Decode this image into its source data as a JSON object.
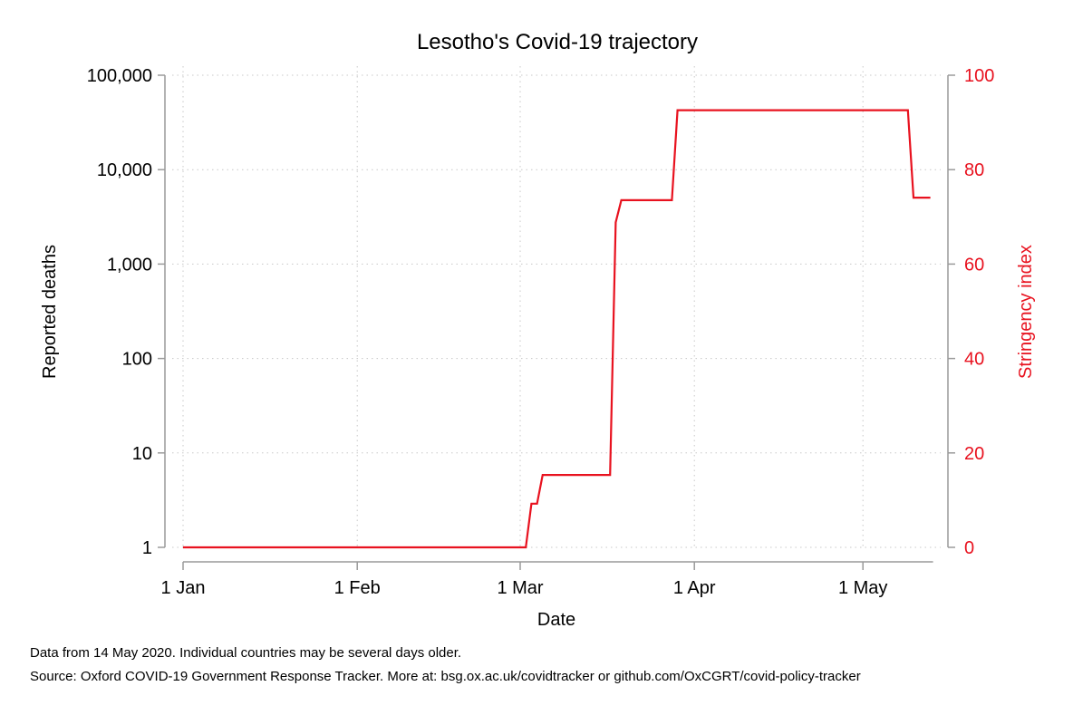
{
  "chart_data": {
    "type": "line",
    "title": "Lesotho's Covid-19 trajectory",
    "xlabel": "Date",
    "ylabel_left": "Reported deaths",
    "ylabel_right": "Stringency index",
    "x_ticks": [
      "1 Jan",
      "1 Feb",
      "1 Mar",
      "1 Apr",
      "1 May"
    ],
    "x_range": [
      "2020-01-01",
      "2020-05-13"
    ],
    "y_left_scale": "log",
    "y_left_ticks": [
      "1",
      "10",
      "100",
      "1,000",
      "10,000",
      "100,000"
    ],
    "y_left_range": [
      1,
      100000
    ],
    "y_right_ticks": [
      "0",
      "20",
      "40",
      "60",
      "80",
      "100"
    ],
    "y_right_range": [
      0,
      100
    ],
    "grid": true,
    "colors": {
      "stringency": "#e8121f",
      "axis": "#9a9a9a",
      "grid": "#c8c8c8"
    },
    "series": [
      {
        "axis": "right",
        "color": "#e8121f",
        "x": [
          "2020-01-01",
          "2020-03-02",
          "2020-03-03",
          "2020-03-04",
          "2020-03-05",
          "2020-03-17",
          "2020-03-18",
          "2020-03-19",
          "2020-03-28",
          "2020-03-29",
          "2020-05-09",
          "2020-05-10",
          "2020-05-13"
        ],
        "values": [
          0,
          0,
          9.26,
          9.26,
          15.34,
          15.34,
          68.83,
          73.54,
          73.54,
          92.59,
          92.59,
          74.07,
          74.07
        ]
      }
    ]
  },
  "footnotes": {
    "line1": "Data from 14 May 2020. Individual countries may be several days older.",
    "line2": "Source: Oxford COVID-19 Government Response Tracker. More at: bsg.ox.ac.uk/covidtracker or github.com/OxCGRT/covid-policy-tracker"
  }
}
